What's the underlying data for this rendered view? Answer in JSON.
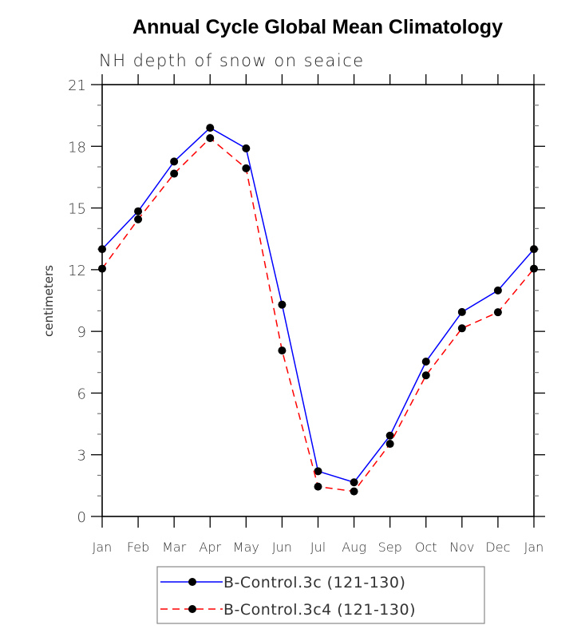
{
  "chart_data": {
    "type": "line",
    "title": "Annual Cycle Global Mean Climatology",
    "subtitle": "NH depth of snow on seaice",
    "xlabel": "",
    "ylabel": "centimeters",
    "categories": [
      "Jan",
      "Feb",
      "Mar",
      "Apr",
      "May",
      "Jun",
      "Jul",
      "Aug",
      "Sep",
      "Oct",
      "Nov",
      "Dec",
      "Jan"
    ],
    "ylim": [
      0,
      21
    ],
    "yticks": [
      0,
      3,
      6,
      9,
      12,
      15,
      18,
      21
    ],
    "yminor_step": 1,
    "grid": false,
    "legend_position": "bottom-center",
    "series": [
      {
        "name": "B-Control.3c (121-130)",
        "color": "#0000ff",
        "line_style": "solid",
        "marker": "filled-circle",
        "values": [
          13.0,
          14.84,
          17.26,
          18.9,
          17.9,
          10.3,
          2.2,
          1.66,
          3.93,
          7.53,
          9.94,
          10.99,
          13.0
        ]
      },
      {
        "name": "B-Control.3c4 (121-130)",
        "color": "#ff0000",
        "line_style": "dashed",
        "marker": "filled-circle",
        "values": [
          12.05,
          14.45,
          16.67,
          18.4,
          16.93,
          8.07,
          1.45,
          1.22,
          3.53,
          6.86,
          9.15,
          9.93,
          12.05
        ]
      }
    ]
  }
}
